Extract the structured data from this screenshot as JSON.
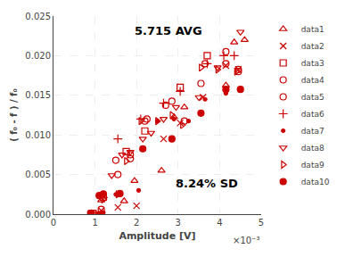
{
  "chart_data": {
    "type": "scatter",
    "xlabel": "Amplitude [V]",
    "ylabel": "( f₀ - f ) / f₀",
    "annotations": [
      "5.715 AVG",
      "8.24% SD",
      "×10⁻³"
    ],
    "color": "#cc0000",
    "xlim": [
      0,
      0.005
    ],
    "ylim": [
      0,
      0.025
    ],
    "xticks": [
      0,
      {
        "value": 0.001,
        "label": "1"
      },
      {
        "value": 0.002,
        "label": "2"
      },
      {
        "value": 0.003,
        "label": "3"
      },
      {
        "value": 0.004,
        "label": "4"
      },
      {
        "value": 0.005,
        "label": "5"
      }
    ],
    "yticks": [
      {
        "value": 0,
        "label": "0.000"
      },
      0.005,
      {
        "value": 0.01,
        "label": "0.010"
      },
      0.015,
      {
        "value": 0.02,
        "label": "0.020"
      },
      0.025
    ],
    "grid": true,
    "legend": "right",
    "series": [
      {
        "name": "data1",
        "marker": "triangle-up-open",
        "x": [
          0.0009,
          0.00115,
          0.0017,
          0.00195,
          0.0026,
          0.0029,
          0.00315,
          0.00415,
          0.00435,
          0.0046
        ],
        "values": [
          0.0001,
          0.00175,
          0.00165,
          0.0042,
          0.0055,
          0.01225,
          0.0135,
          0.01625,
          0.0217,
          0.022
        ]
      },
      {
        "name": "data2",
        "marker": "x-thin-open",
        "x": [
          0.0009,
          0.00115,
          0.00155,
          0.002,
          0.00265,
          0.00305,
          0.0036,
          0.00415,
          0.00445
        ],
        "values": [
          0.0001,
          0.00045,
          0.00085,
          0.00105,
          0.0095,
          0.0115,
          0.01475,
          0.01875,
          0.01825
        ]
      },
      {
        "name": "data3",
        "marker": "square-open",
        "x": [
          0.00095,
          0.0012,
          0.00175,
          0.0022,
          0.00305,
          0.0037
        ],
        "values": [
          0.0001,
          0.00215,
          0.0079,
          0.0105,
          0.016,
          0.02
        ]
      },
      {
        "name": "data4",
        "marker": "circle-open",
        "x": [
          0.0009,
          0.00115,
          0.0015,
          0.00185,
          0.0022,
          0.0027,
          0.00315,
          0.00365,
          0.00415,
          0.00445
        ],
        "values": [
          0.0001,
          0.0006,
          0.0068,
          0.0075,
          0.01175,
          0.01375,
          0.01175,
          0.019,
          0.0205,
          0.01825
        ]
      },
      {
        "name": "data5",
        "marker": "circle-open",
        "x": [
          0.0009,
          0.00155,
          0.00185,
          0.00225,
          0.00285,
          0.00355,
          0.00415,
          0.00445
        ],
        "values": [
          0.0001,
          0.005,
          0.007,
          0.012,
          0.01425,
          0.0165,
          0.019,
          0.018
        ]
      },
      {
        "name": "data6",
        "marker": "cross-thin-open",
        "x": [
          0.0012,
          0.00155,
          0.0021,
          0.00265,
          0.00305,
          0.0037,
          0.0041,
          0.00435
        ],
        "values": [
          0.0021,
          0.0095,
          0.012,
          0.014,
          0.0155,
          0.019,
          0.02,
          0.02
        ]
      },
      {
        "name": "data7",
        "marker": "point",
        "x": [
          0.0009,
          0.0011,
          0.0012,
          0.0015,
          0.00205,
          0.0025,
          0.0029,
          0.00325,
          0.00365,
          0.00415,
          0.0045
        ],
        "values": [
          0.0001,
          0.0001,
          0.0002,
          0.0025,
          0.003,
          0.01175,
          0.012,
          0.01175,
          0.0145,
          0.01525,
          0.01575
        ]
      },
      {
        "name": "data8",
        "marker": "triangle-down-open",
        "x": [
          0.0009,
          0.0011,
          0.0014,
          0.00165,
          0.00185,
          0.00215,
          0.00235,
          0.00265,
          0.00295,
          0.0035,
          0.00395,
          0.0045
        ],
        "values": [
          0.0001,
          0.0001,
          0.0049,
          0.0075,
          0.00785,
          0.0095,
          0.01025,
          0.012,
          0.0135,
          0.01475,
          0.0185,
          0.023
        ]
      },
      {
        "name": "data9",
        "marker": "triangle-right-open",
        "x": [
          0.00095,
          0.0012,
          0.00155,
          0.00175,
          0.0021,
          0.0025,
          0.00285,
          0.0031,
          0.00355,
          0.00395,
          0.0044
        ],
        "values": [
          0.0001,
          0.00185,
          0.0025,
          0.0067,
          0.01175,
          0.01175,
          0.0125,
          0.01125,
          0.0185,
          0.01825,
          0.018
        ]
      },
      {
        "name": "data10",
        "marker": "circle",
        "x": [
          0.0009,
          0.0011,
          0.0012,
          0.0016,
          0.00215,
          0.00285,
          0.00355,
          0.00415,
          0.0045
        ],
        "values": [
          0.0001,
          0.00235,
          0.00255,
          0.0026,
          0.00825,
          0.0095,
          0.01275,
          0.01575,
          0.01575
        ]
      }
    ]
  }
}
